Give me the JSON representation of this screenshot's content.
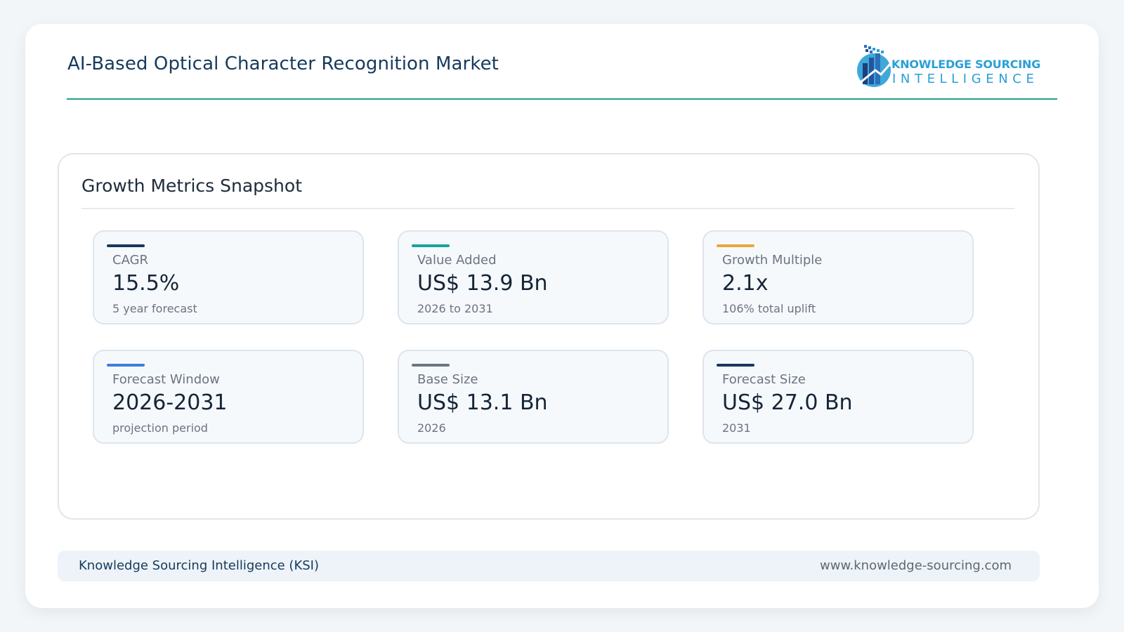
{
  "header": {
    "title": "AI-Based Optical Character Recognition Market",
    "logo": {
      "line1": "KNOWLEDGE SOURCING",
      "line2": "INTELLIGENCE"
    }
  },
  "panel": {
    "title": "Growth Metrics Snapshot",
    "metrics": [
      {
        "label": "CAGR",
        "value": "15.5%",
        "sub": "5 year forecast",
        "accent": "#163a5c"
      },
      {
        "label": "Value Added",
        "value": "US$ 13.9 Bn",
        "sub": "2026 to 2031",
        "accent": "#17a3a0"
      },
      {
        "label": "Growth Multiple",
        "value": "2.1x",
        "sub": "106% total uplift",
        "accent": "#e7a63d"
      },
      {
        "label": "Forecast Window",
        "value": "2026-2031",
        "sub": "projection period",
        "accent": "#3b7fe0"
      },
      {
        "label": "Base Size",
        "value": "US$ 13.1 Bn",
        "sub": "2026",
        "accent": "#6b7686"
      },
      {
        "label": "Forecast Size",
        "value": "US$ 27.0 Bn",
        "sub": "2031",
        "accent": "#163a5c"
      }
    ]
  },
  "footer": {
    "left": "Knowledge Sourcing Intelligence (KSI)",
    "right": "www.knowledge-sourcing.com"
  },
  "colors": {
    "header_rule": "#1f9e8f",
    "brand": "#2a9fd6",
    "title": "#163a5c"
  }
}
